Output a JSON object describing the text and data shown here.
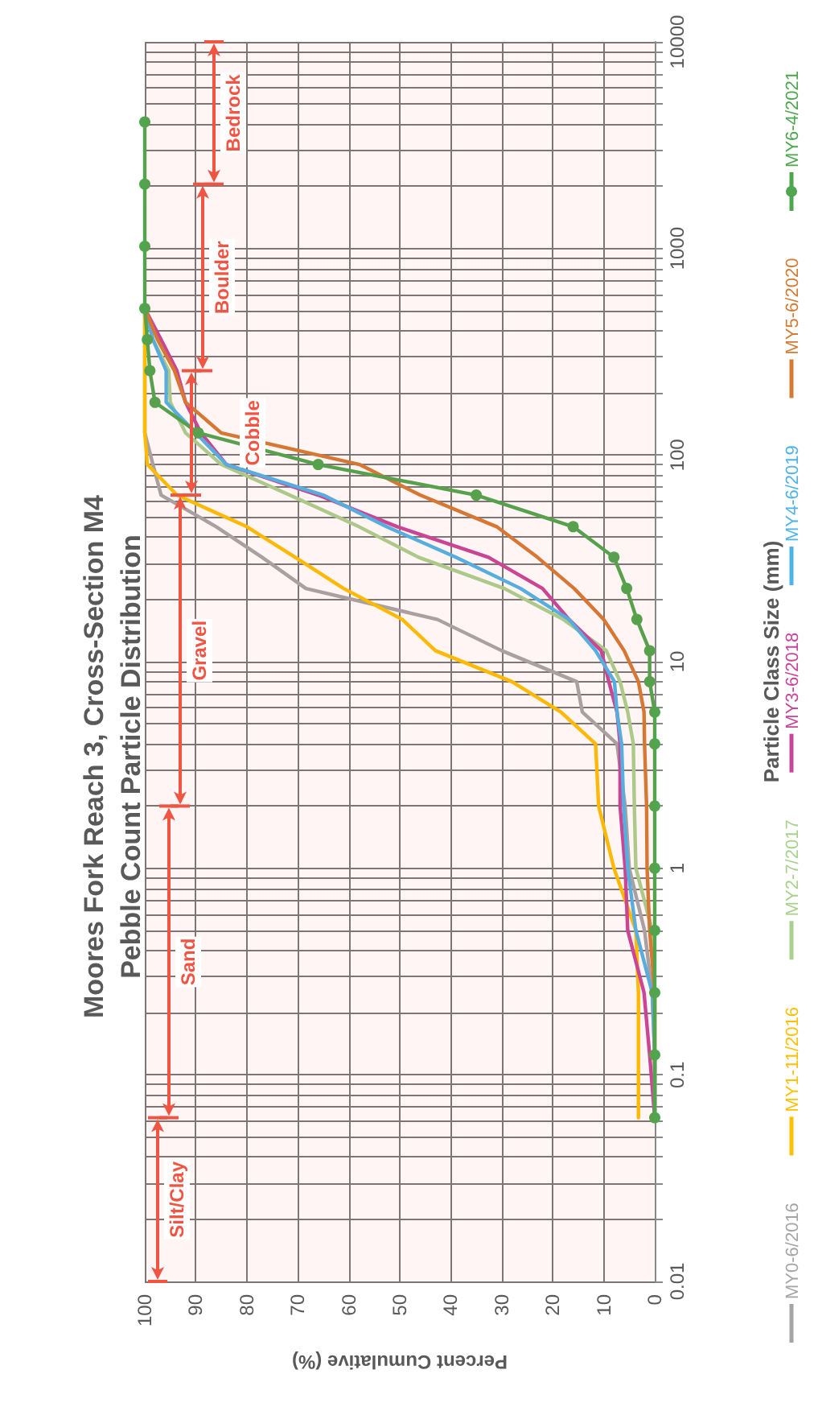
{
  "chart_data": {
    "type": "line",
    "title": "Moores Fork Reach 3, Cross-Section M4\nPebble Count Particle Distribution",
    "xlabel": "Percent Cumulative (%)",
    "ylabel": "Particle Class Size (mm)",
    "series": [
      {
        "name": "MY0-6/2016",
        "color": "#a5a5a5",
        "x": [
          0,
          0,
          0.5,
          2,
          5,
          5.8,
          7.4,
          14.2,
          15.3,
          30,
          42.6,
          68.4,
          77,
          86,
          96.8,
          98.4,
          100,
          100,
          100,
          100,
          100
        ],
        "values": [
          0.062,
          0.125,
          0.25,
          0.5,
          1,
          2,
          4,
          5.7,
          8,
          11.3,
          16,
          22.6,
          32,
          45,
          64,
          90,
          128,
          180,
          256,
          362,
          512
        ]
      },
      {
        "name": "MY1-11/2016",
        "color": "#ffc000",
        "x": [
          3.2,
          3.2,
          3.2,
          3.7,
          8,
          11,
          11.6,
          18.4,
          28,
          43,
          49.5,
          61,
          70.5,
          80,
          93.7,
          99.5,
          100,
          100,
          100,
          100,
          100
        ],
        "values": [
          0.062,
          0.125,
          0.25,
          0.5,
          1,
          2,
          4,
          5.7,
          8,
          11.3,
          16,
          22.6,
          32,
          45,
          64,
          90,
          128,
          180,
          256,
          362,
          512
        ]
      },
      {
        "name": "MY2-7/2017",
        "color": "#a9d18e",
        "x": [
          0,
          0,
          0,
          0.5,
          3.7,
          4,
          4.2,
          5.3,
          6.8,
          9.5,
          17.9,
          29.5,
          46.3,
          58,
          71.6,
          85,
          92,
          95,
          95.3,
          98.4,
          100
        ],
        "values": [
          0.062,
          0.125,
          0.25,
          0.5,
          1,
          2,
          4,
          5.7,
          8,
          11.3,
          16,
          22.6,
          32,
          45,
          64,
          90,
          128,
          180,
          256,
          362,
          512
        ]
      },
      {
        "name": "MY3-6/2018",
        "color": "#c9449b",
        "x": [
          0,
          1,
          2.1,
          5.3,
          5.8,
          6.8,
          6.8,
          7.4,
          9,
          10.5,
          16.8,
          22,
          32.6,
          50.5,
          66,
          84,
          89,
          92,
          93.7,
          96.8,
          100
        ],
        "values": [
          0.062,
          0.125,
          0.25,
          0.5,
          1,
          2,
          4,
          5.7,
          8,
          11.3,
          16,
          22.6,
          32,
          45,
          64,
          90,
          128,
          180,
          256,
          362,
          512
        ]
      },
      {
        "name": "MY4-6/2019",
        "color": "#4eb3e8",
        "x": [
          0,
          0,
          0.5,
          3.7,
          5.3,
          6.1,
          6.5,
          7.4,
          7.9,
          11.6,
          16.8,
          26.3,
          39,
          52.6,
          65,
          84,
          90,
          95.8,
          95.8,
          98.4,
          100
        ],
        "values": [
          0.062,
          0.125,
          0.25,
          0.5,
          1,
          2,
          4,
          5.7,
          8,
          11.3,
          16,
          22.6,
          32,
          45,
          64,
          90,
          128,
          180,
          256,
          362,
          512
        ]
      },
      {
        "name": "MY5-6/2020",
        "color": "#d57a33",
        "x": [
          0,
          0,
          0,
          1,
          1.5,
          1.6,
          2,
          2.1,
          3.2,
          6,
          10,
          15.8,
          23,
          31,
          46,
          57.9,
          85,
          92,
          94.2,
          97.5,
          100
        ],
        "values": [
          0.062,
          0.125,
          0.25,
          0.5,
          1,
          2,
          4,
          5.7,
          8,
          11.3,
          16,
          22.6,
          32,
          45,
          64,
          90,
          128,
          180,
          256,
          362,
          512
        ]
      },
      {
        "name": "MY6-4/2021",
        "color": "#4ea64e",
        "marker": "circle",
        "x": [
          0,
          0,
          0,
          0,
          0,
          0,
          0,
          0,
          1,
          1,
          3.5,
          5.5,
          8,
          16,
          35,
          66,
          89.5,
          98,
          99,
          99.5,
          100,
          100,
          100,
          100
        ],
        "values": [
          0.062,
          0.125,
          0.25,
          0.5,
          1,
          2,
          4,
          5.7,
          8,
          11.3,
          16,
          22.6,
          32,
          45,
          64,
          90,
          128,
          180,
          256,
          362,
          512,
          1024,
          2048,
          4096
        ]
      }
    ],
    "marker": "none",
    "line_style": "solid",
    "log": "y",
    "grid": true,
    "legend": "right",
    "xlim": [
      100,
      0
    ],
    "xticks": [
      100,
      90,
      80,
      70,
      60,
      50,
      40,
      30,
      20,
      10,
      0
    ],
    "ylim": [
      0.01,
      10000
    ],
    "yticks": [
      0.01,
      {
        "value": 0.02,
        "label": null
      },
      {
        "value": 0.03,
        "label": null
      },
      {
        "value": 0.04,
        "label": null
      },
      {
        "value": 0.05,
        "label": null
      },
      {
        "value": 0.06,
        "label": null
      },
      {
        "value": 0.07,
        "label": null
      },
      {
        "value": 0.08,
        "label": null
      },
      {
        "value": 0.09,
        "label": null
      },
      0.1,
      {
        "value": 0.2,
        "label": null
      },
      {
        "value": 0.3,
        "label": null
      },
      {
        "value": 0.4,
        "label": null
      },
      {
        "value": 0.5,
        "label": null
      },
      {
        "value": 0.6,
        "label": null
      },
      {
        "value": 0.7,
        "label": null
      },
      {
        "value": 0.8,
        "label": null
      },
      {
        "value": 0.9,
        "label": null
      },
      1,
      {
        "value": 2,
        "label": null
      },
      {
        "value": 3,
        "label": null
      },
      {
        "value": 4,
        "label": null
      },
      {
        "value": 5,
        "label": null
      },
      {
        "value": 6,
        "label": null
      },
      {
        "value": 7,
        "label": null
      },
      {
        "value": 8,
        "label": null
      },
      {
        "value": 9,
        "label": null
      },
      10,
      {
        "value": 20,
        "label": null
      },
      {
        "value": 30,
        "label": null
      },
      {
        "value": 40,
        "label": null
      },
      {
        "value": 50,
        "label": null
      },
      {
        "value": 60,
        "label": null
      },
      {
        "value": 70,
        "label": null
      },
      {
        "value": 80,
        "label": null
      },
      {
        "value": 90,
        "label": null
      },
      100,
      {
        "value": 200,
        "label": null
      },
      {
        "value": 300,
        "label": null
      },
      {
        "value": 400,
        "label": null
      },
      {
        "value": 500,
        "label": null
      },
      {
        "value": 600,
        "label": null
      },
      {
        "value": 700,
        "label": null
      },
      {
        "value": 800,
        "label": null
      },
      {
        "value": 900,
        "label": null
      },
      1000,
      {
        "value": 2000,
        "label": null
      },
      {
        "value": 3000,
        "label": null
      },
      {
        "value": 4000,
        "label": null
      },
      {
        "value": 5000,
        "label": null
      },
      {
        "value": 6000,
        "label": null
      },
      {
        "value": 7000,
        "label": null
      },
      {
        "value": 8000,
        "label": null
      },
      {
        "value": 9000,
        "label": null
      },
      10000
    ],
    "bands": [
      {
        "axis": "y",
        "from": 0.01,
        "to": 0.062,
        "label": "Silt/Clay",
        "color": "#f05544"
      },
      {
        "axis": "y",
        "from": 0.062,
        "to": 2,
        "label": "Sand",
        "color": "#f05544"
      },
      {
        "axis": "y",
        "from": 2,
        "to": 64,
        "label": "Gravel",
        "color": "#f05544"
      },
      {
        "axis": "y",
        "from": 64,
        "to": 256,
        "label": "Cobble",
        "color": "#f05544"
      },
      {
        "axis": "y",
        "from": 256,
        "to": 2048,
        "label": "Boulder",
        "color": "#f05544"
      },
      {
        "axis": "y",
        "from": 2048,
        "to": 10000,
        "label": "Bedrock",
        "color": "#f05544"
      }
    ]
  }
}
